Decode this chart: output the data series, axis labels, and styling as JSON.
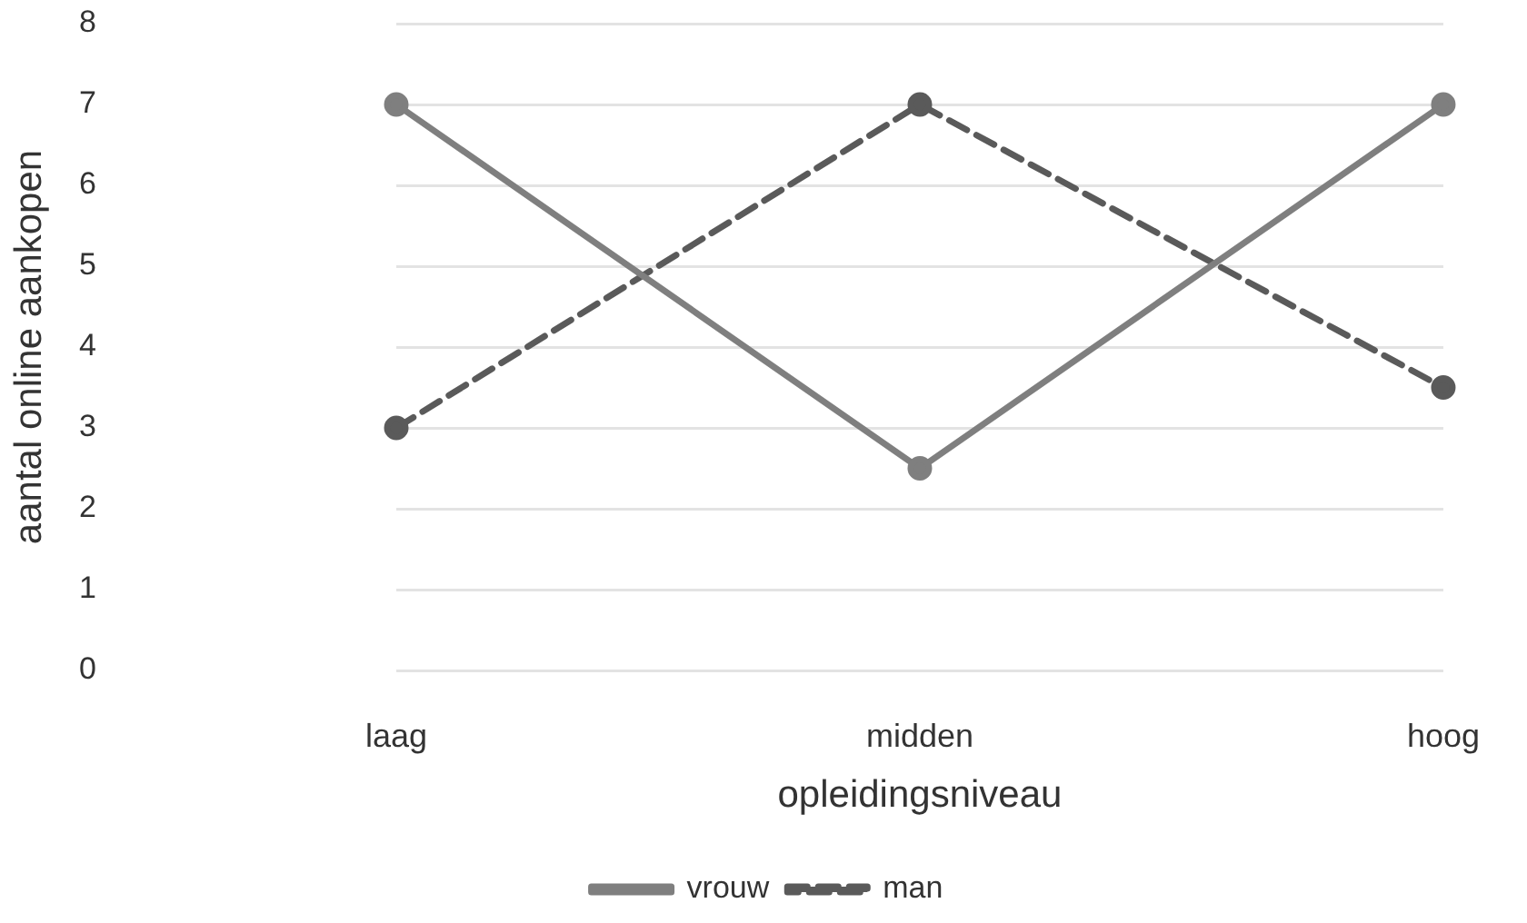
{
  "chart_data": {
    "type": "line",
    "xlabel": "opleidingsniveau",
    "ylabel": "aantal online aankopen",
    "categories": [
      "laag",
      "midden",
      "hoog"
    ],
    "series": [
      {
        "name": "vrouw",
        "color": "#7f7f7f",
        "values": [
          7,
          2.5,
          7
        ],
        "line_style": "solid"
      },
      {
        "name": "man",
        "color": "#5a5a5a",
        "values": [
          3,
          7,
          3.5
        ],
        "line_style": "dashed"
      }
    ],
    "ylim": [
      0,
      8
    ],
    "yticks": [
      0,
      1,
      2,
      3,
      4,
      5,
      6,
      7,
      8
    ],
    "grid": "y",
    "legend": "bottom",
    "marker": "circle"
  }
}
